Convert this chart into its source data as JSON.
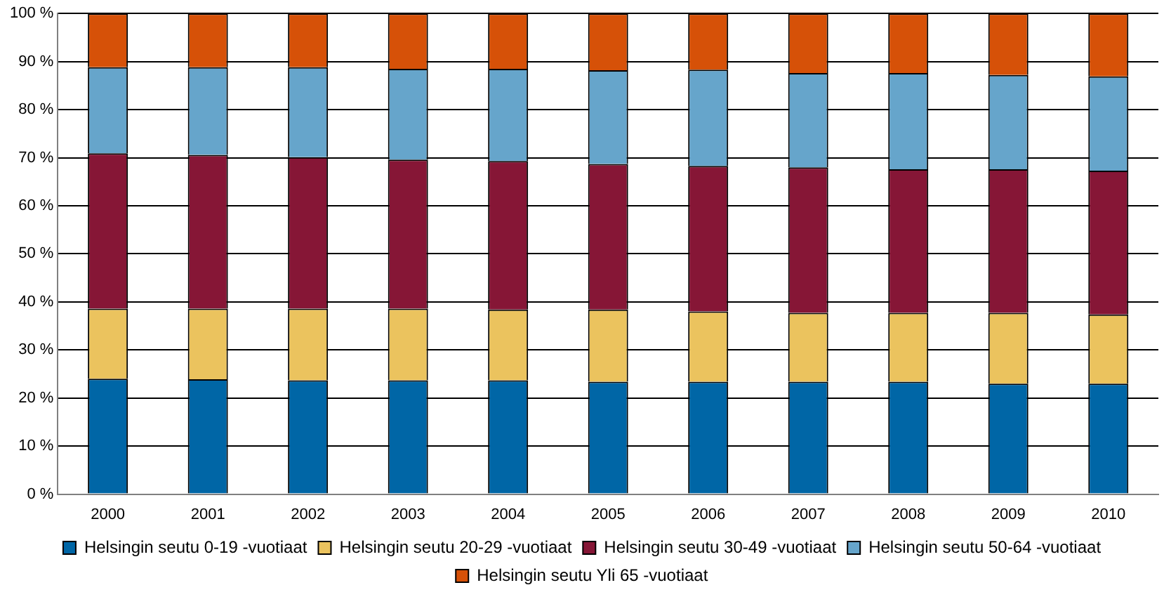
{
  "chart_data": {
    "type": "bar",
    "stacked": true,
    "categories": [
      "2000",
      "2001",
      "2002",
      "2003",
      "2004",
      "2005",
      "2006",
      "2007",
      "2008",
      "2009",
      "2010"
    ],
    "series": [
      {
        "name": "Helsingin seutu 0-19 -vuotiaat",
        "color": "#0066a6",
        "values": [
          24.0,
          23.9,
          23.7,
          23.7,
          23.7,
          23.4,
          23.4,
          23.4,
          23.4,
          23.0,
          23.0
        ]
      },
      {
        "name": "Helsingin seutu 20-29 -vuotiaat",
        "color": "#ebc35e",
        "values": [
          14.6,
          14.7,
          14.9,
          14.9,
          14.7,
          15.0,
          14.6,
          14.3,
          14.3,
          14.7,
          14.4
        ]
      },
      {
        "name": "Helsingin seutu 30-49 -vuotiaat",
        "color": "#861636",
        "values": [
          32.3,
          32.0,
          31.5,
          31.0,
          30.9,
          30.3,
          30.3,
          30.3,
          29.9,
          29.9,
          29.9
        ]
      },
      {
        "name": "Helsingin seutu 50-64 -vuotiaat",
        "color": "#66a5cb",
        "values": [
          17.9,
          18.2,
          18.7,
          18.9,
          19.2,
          19.5,
          20.0,
          19.6,
          20.0,
          19.6,
          19.6
        ]
      },
      {
        "name": "Helsingin seutu Yli 65 -vuotiaat",
        "color": "#d65108",
        "values": [
          11.2,
          11.2,
          11.2,
          11.5,
          11.5,
          11.8,
          11.7,
          12.4,
          12.4,
          12.8,
          13.1
        ]
      }
    ],
    "ylim": [
      0,
      100
    ],
    "yticks": [
      {
        "value": 0,
        "label": "0 %"
      },
      {
        "value": 10,
        "label": "10 %"
      },
      {
        "value": 20,
        "label": "20 %"
      },
      {
        "value": 30,
        "label": "30 %"
      },
      {
        "value": 40,
        "label": "40 %"
      },
      {
        "value": 50,
        "label": "50 %"
      },
      {
        "value": 60,
        "label": "60 %"
      },
      {
        "value": 70,
        "label": "70 %"
      },
      {
        "value": 80,
        "label": "80 %"
      },
      {
        "value": 90,
        "label": "90 %"
      },
      {
        "value": 100,
        "label": "100 %"
      }
    ],
    "grid": "y",
    "legend": "bottom"
  }
}
